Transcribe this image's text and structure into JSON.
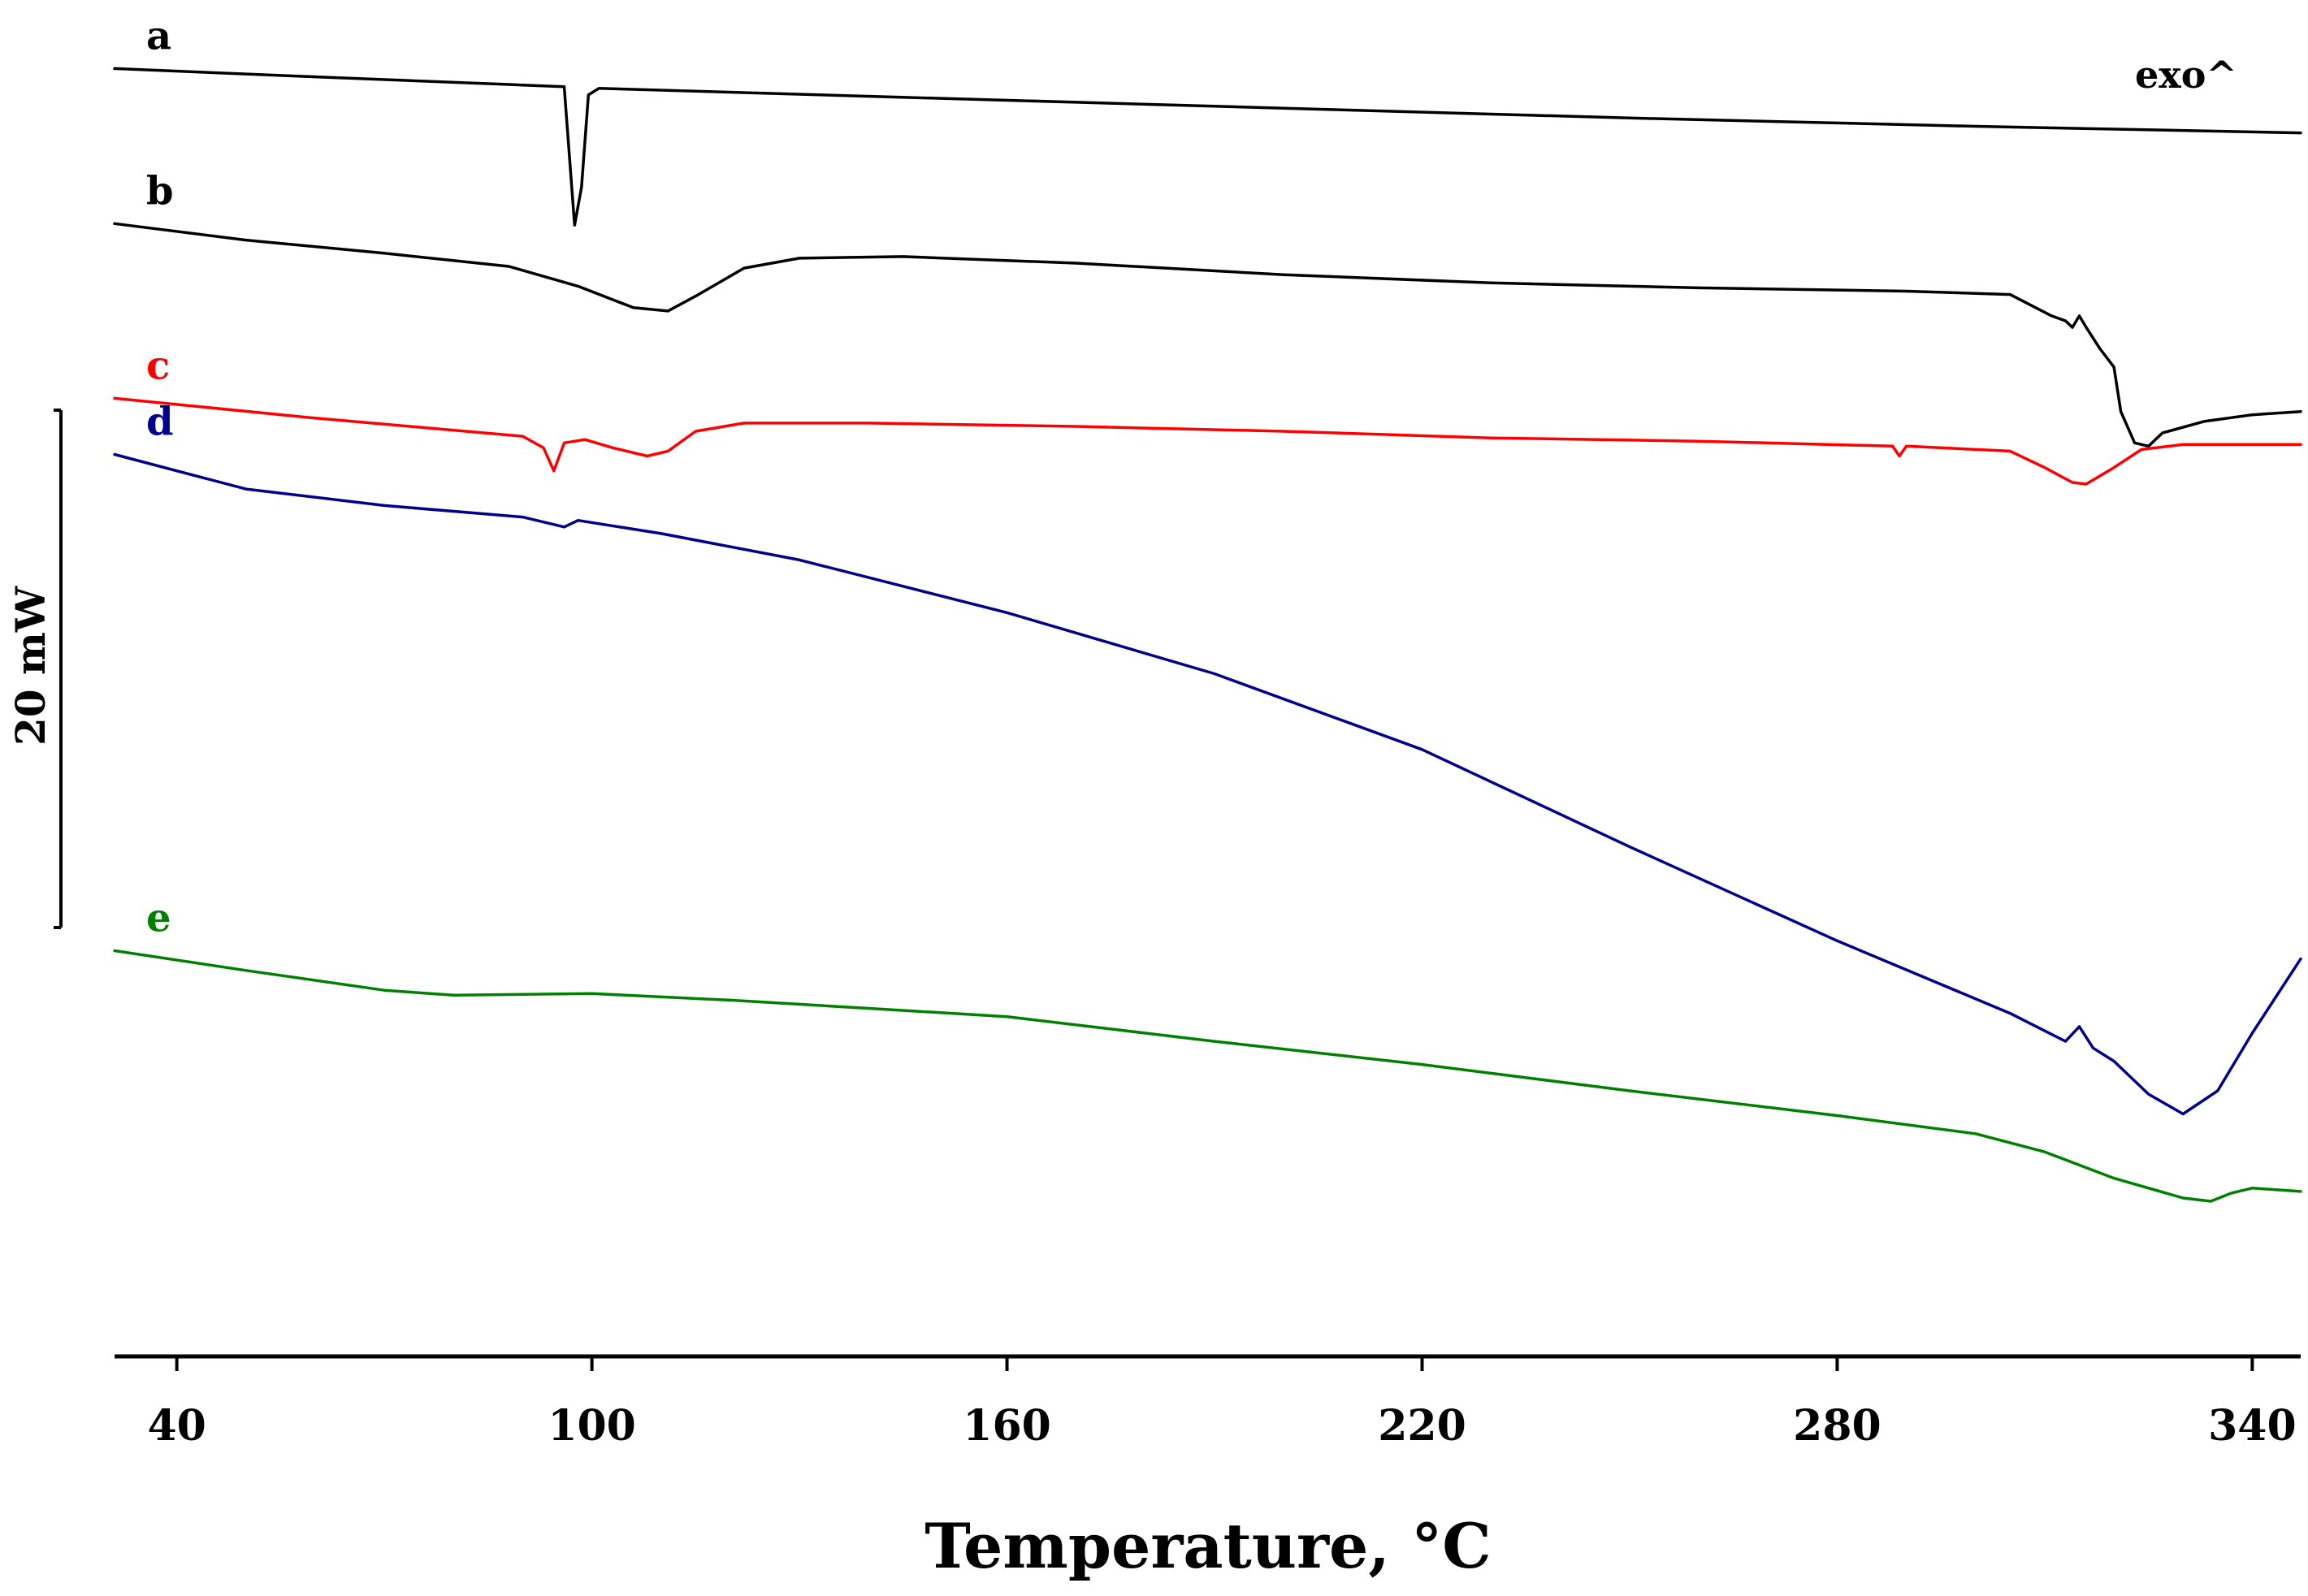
{
  "chart_data": {
    "type": "line",
    "title": "",
    "xlabel": "Temperature, °C",
    "ylabel": "",
    "xlim": [
      31,
      347
    ],
    "x_ticks": [
      40,
      100,
      160,
      220,
      280,
      340
    ],
    "y_units": "relative heat flow (mW); vertical offsets arbitrary, exo up",
    "grid": false,
    "legend": "none; series identified by letters at left",
    "annotation": "exo^",
    "scale_bar": {
      "label": "20 mW",
      "value_mW": 20
    },
    "series": [
      {
        "name": "a",
        "color": "#000000",
        "points": [
          [
            31,
            5.2
          ],
          [
            60,
            4.7
          ],
          [
            90,
            4.2
          ],
          [
            96,
            4.1
          ],
          [
            97.5,
            -4.3
          ],
          [
            98.5,
            -2.0
          ],
          [
            99.5,
            3.6
          ],
          [
            101,
            4.0
          ],
          [
            150,
            3.4
          ],
          [
            200,
            2.8
          ],
          [
            250,
            2.2
          ],
          [
            300,
            1.7
          ],
          [
            347,
            1.3
          ]
        ]
      },
      {
        "name": "b",
        "color": "#000000",
        "points": [
          [
            31,
            -4.2
          ],
          [
            50,
            -5.2
          ],
          [
            70,
            -6.0
          ],
          [
            88,
            -6.8
          ],
          [
            98,
            -8.0
          ],
          [
            106,
            -9.3
          ],
          [
            111,
            -9.5
          ],
          [
            115,
            -8.6
          ],
          [
            122,
            -6.9
          ],
          [
            130,
            -6.3
          ],
          [
            145,
            -6.2
          ],
          [
            170,
            -6.6
          ],
          [
            200,
            -7.3
          ],
          [
            230,
            -7.8
          ],
          [
            260,
            -8.1
          ],
          [
            290,
            -8.3
          ],
          [
            305,
            -8.5
          ],
          [
            311,
            -9.8
          ],
          [
            313,
            -10.1
          ],
          [
            314,
            -10.5
          ],
          [
            315,
            -9.8
          ],
          [
            316,
            -10.5
          ],
          [
            318,
            -11.8
          ],
          [
            320,
            -12.9
          ],
          [
            321,
            -15.6
          ],
          [
            323,
            -17.5
          ],
          [
            325,
            -17.7
          ],
          [
            327,
            -16.9
          ],
          [
            333,
            -16.2
          ],
          [
            340,
            -15.8
          ],
          [
            347,
            -15.6
          ]
        ]
      },
      {
        "name": "c",
        "color": "#ff0000",
        "points": [
          [
            31,
            -14.8
          ],
          [
            60,
            -16.0
          ],
          [
            90,
            -17.1
          ],
          [
            93,
            -17.8
          ],
          [
            94.5,
            -19.2
          ],
          [
            96,
            -17.5
          ],
          [
            99,
            -17.3
          ],
          [
            103,
            -17.8
          ],
          [
            108,
            -18.3
          ],
          [
            111,
            -18.0
          ],
          [
            115,
            -16.8
          ],
          [
            122,
            -16.3
          ],
          [
            140,
            -16.3
          ],
          [
            170,
            -16.5
          ],
          [
            200,
            -16.8
          ],
          [
            230,
            -17.2
          ],
          [
            260,
            -17.4
          ],
          [
            288,
            -17.7
          ],
          [
            289,
            -18.3
          ],
          [
            290,
            -17.7
          ],
          [
            305,
            -18.0
          ],
          [
            310,
            -19.0
          ],
          [
            314,
            -19.9
          ],
          [
            316,
            -20.0
          ],
          [
            320,
            -19.0
          ],
          [
            324,
            -17.9
          ],
          [
            330,
            -17.6
          ],
          [
            347,
            -17.6
          ]
        ]
      },
      {
        "name": "d",
        "color": "#00008b",
        "points": [
          [
            31,
            -18.2
          ],
          [
            50,
            -20.3
          ],
          [
            70,
            -21.3
          ],
          [
            90,
            -22.0
          ],
          [
            96,
            -22.6
          ],
          [
            98,
            -22.2
          ],
          [
            110,
            -23.0
          ],
          [
            130,
            -24.6
          ],
          [
            160,
            -27.8
          ],
          [
            190,
            -31.5
          ],
          [
            220,
            -36.1
          ],
          [
            250,
            -42.0
          ],
          [
            280,
            -47.7
          ],
          [
            305,
            -52.1
          ],
          [
            313,
            -53.8
          ],
          [
            315,
            -52.9
          ],
          [
            317,
            -54.2
          ],
          [
            320,
            -55.0
          ],
          [
            325,
            -57.0
          ],
          [
            330,
            -58.2
          ],
          [
            335,
            -56.8
          ],
          [
            340,
            -53.3
          ],
          [
            347,
            -48.8
          ]
        ]
      },
      {
        "name": "e",
        "color": "#008000",
        "points": [
          [
            31,
            -48.3
          ],
          [
            50,
            -49.5
          ],
          [
            70,
            -50.7
          ],
          [
            80,
            -51.0
          ],
          [
            100,
            -50.9
          ],
          [
            120,
            -51.3
          ],
          [
            140,
            -51.8
          ],
          [
            160,
            -52.3
          ],
          [
            190,
            -53.8
          ],
          [
            220,
            -55.2
          ],
          [
            250,
            -56.8
          ],
          [
            280,
            -58.3
          ],
          [
            300,
            -59.4
          ],
          [
            310,
            -60.5
          ],
          [
            320,
            -62.1
          ],
          [
            330,
            -63.3
          ],
          [
            334,
            -63.5
          ],
          [
            337,
            -63.0
          ],
          [
            340,
            -62.7
          ],
          [
            347,
            -62.9
          ]
        ]
      }
    ]
  }
}
